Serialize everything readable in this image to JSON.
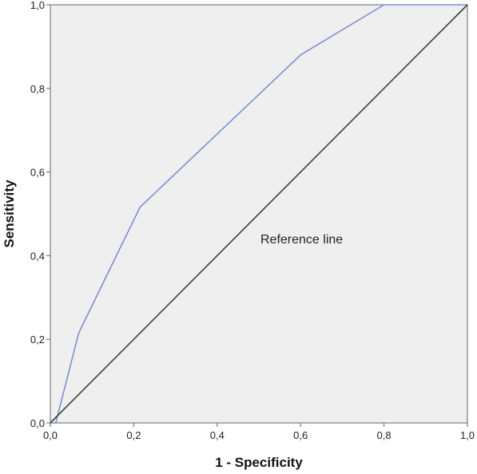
{
  "chart_data": {
    "type": "line",
    "xlabel": "1 - Specificity",
    "ylabel": "Sensitivity",
    "xlim": [
      0,
      1
    ],
    "ylim": [
      0,
      1
    ],
    "x_ticks": [
      "0,0",
      "0,2",
      "0,4",
      "0,6",
      "0,8",
      "1,0"
    ],
    "y_ticks": [
      "0,0",
      "0,2",
      "0,4",
      "0,6",
      "0,8",
      "1,0"
    ],
    "grid": false,
    "annotation": "Reference line",
    "series": [
      {
        "color": "#7f8fcf",
        "points": [
          [
            0.0,
            0.0
          ],
          [
            0.013,
            0.0
          ],
          [
            0.068,
            0.215
          ],
          [
            0.215,
            0.516
          ],
          [
            0.6,
            0.88
          ],
          [
            0.8,
            1.0
          ],
          [
            1.0,
            1.0
          ]
        ]
      },
      {
        "color": "#2e4a2e",
        "points": [
          [
            0.0,
            0.0
          ],
          [
            1.0,
            1.0
          ]
        ]
      }
    ],
    "plot_background": "#efefef"
  }
}
